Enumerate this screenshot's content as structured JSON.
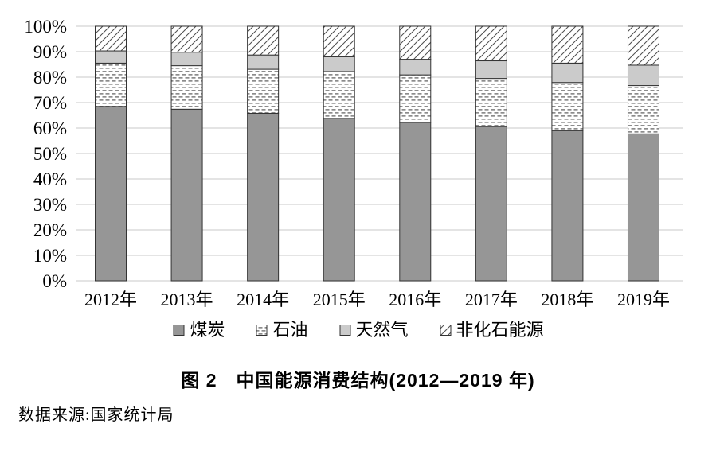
{
  "figure": {
    "title": "图 2　中国能源消费结构(2012—2019 年)",
    "source": "数据来源:国家统计局"
  },
  "colors": {
    "coal_fill": "#969696",
    "gas_fill": "#cbcbcb",
    "oil_dash": "#8c8c8c",
    "hatch_line": "#4d4d4d",
    "bar_outline": "#333333",
    "gridline": "#dcdcdc",
    "pattern_background": "#ffffff",
    "text": "#000000"
  },
  "chart_data": {
    "type": "bar",
    "stacked": true,
    "unit": "%",
    "title": "中国能源消费结构(2012—2019年)",
    "categories": [
      "2012年",
      "2013年",
      "2014年",
      "2015年",
      "2016年",
      "2017年",
      "2018年",
      "2019年"
    ],
    "series": [
      {
        "name": "煤炭",
        "style": "solid-gray",
        "values": [
          68.5,
          67.4,
          65.8,
          63.8,
          62.2,
          60.6,
          59.0,
          57.7
        ]
      },
      {
        "name": "石油",
        "style": "dash-pattern",
        "values": [
          17.0,
          17.1,
          17.3,
          18.4,
          18.7,
          18.9,
          18.9,
          19.0
        ]
      },
      {
        "name": "天然气",
        "style": "solid-lightgray",
        "values": [
          4.8,
          5.3,
          5.6,
          5.8,
          6.1,
          6.9,
          7.6,
          8.0
        ]
      },
      {
        "name": "非化石能源",
        "style": "diagonal-hatch",
        "values": [
          9.7,
          10.2,
          11.3,
          12.0,
          13.0,
          13.6,
          14.5,
          15.3
        ]
      }
    ],
    "ylim": [
      0,
      100
    ],
    "y_ticks": [
      "0%",
      "10%",
      "20%",
      "30%",
      "40%",
      "50%",
      "60%",
      "70%",
      "80%",
      "90%",
      "100%"
    ],
    "grid": "horizontal",
    "legend_position": "bottom",
    "legend": [
      "煤炭",
      "石油",
      "天然气",
      "非化石能源"
    ]
  }
}
